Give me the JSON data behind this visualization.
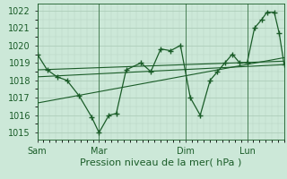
{
  "bg_color": "#cce8d8",
  "line_color": "#1a5c28",
  "grid_color": "#a8c8b4",
  "ylabel_ticks": [
    1015,
    1016,
    1017,
    1018,
    1019,
    1020,
    1021,
    1022
  ],
  "ylim": [
    1014.6,
    1022.4
  ],
  "xlabel": "Pression niveau de la mer( hPa )",
  "xtick_labels": [
    "Sam",
    "Mar",
    "Dim",
    "Lun"
  ],
  "xtick_positions": [
    0.0,
    0.25,
    0.6,
    0.85
  ],
  "xlim": [
    0.0,
    1.0
  ],
  "series1_x": [
    0.0,
    0.04,
    0.08,
    0.12,
    0.17,
    0.22,
    0.25,
    0.29,
    0.32,
    0.36,
    0.42,
    0.46,
    0.5,
    0.54,
    0.58,
    0.62,
    0.66,
    0.7,
    0.73,
    0.76,
    0.79,
    0.82,
    0.85,
    0.88,
    0.91,
    0.93,
    0.96,
    0.98,
    1.0
  ],
  "series1_y": [
    1019.5,
    1018.6,
    1018.2,
    1018.0,
    1017.1,
    1015.9,
    1015.0,
    1016.0,
    1016.1,
    1018.6,
    1019.0,
    1018.5,
    1019.8,
    1019.7,
    1020.0,
    1017.0,
    1016.0,
    1018.0,
    1018.5,
    1019.0,
    1019.5,
    1019.0,
    1019.0,
    1021.0,
    1021.5,
    1021.9,
    1021.9,
    1020.7,
    1018.9
  ],
  "trend1_x": [
    0.0,
    1.0
  ],
  "trend1_y": [
    1018.2,
    1018.9
  ],
  "trend2_x": [
    0.0,
    1.0
  ],
  "trend2_y": [
    1016.7,
    1019.3
  ],
  "trend3_x": [
    0.0,
    1.0
  ],
  "trend3_y": [
    1018.6,
    1019.1
  ],
  "vline_positions": [
    0.0,
    0.25,
    0.6,
    0.85
  ],
  "marker": "+",
  "markersize": 4,
  "linewidth": 0.9,
  "trend_linewidth": 0.8,
  "font_size_xlabel": 8,
  "font_size_tick": 7
}
